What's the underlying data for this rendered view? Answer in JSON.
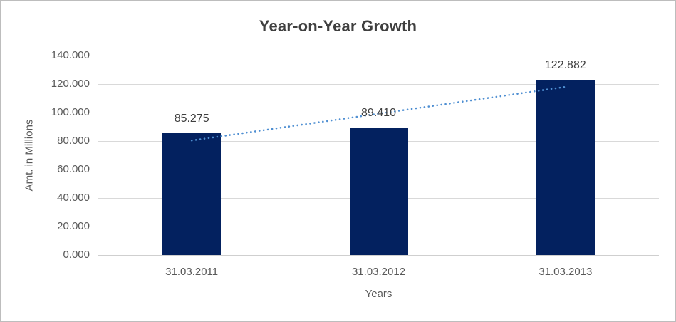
{
  "frame": {
    "background": "#ffffff",
    "border_color": "#bdbdbd"
  },
  "chart_data": {
    "type": "bar",
    "title": "Year-on-Year Growth",
    "categories": [
      "31.03.2011",
      "31.03.2012",
      "31.03.2013"
    ],
    "values": [
      85.275,
      89.41,
      122.882
    ],
    "data_labels": [
      "85.275",
      "89.410",
      "122.882"
    ],
    "xlabel": "Years",
    "ylabel": "Amt. in Millions",
    "ylim": [
      0,
      140
    ],
    "ytick_step": 20,
    "ytick_labels": [
      "0.000",
      "20.000",
      "40.000",
      "60.000",
      "80.000",
      "100.000",
      "120.000",
      "140.000"
    ],
    "grid": true,
    "legend_position": "none",
    "trendline": {
      "type": "linear",
      "style": "dotted"
    },
    "colors": {
      "bar": "#03215f",
      "trendline": "#4f8fd2",
      "gridline": "#d9d9d9",
      "axis_line": "#cfcfcf",
      "title_text": "#3f3f3f",
      "tick_text": "#595959",
      "axis_title_text": "#595959",
      "data_label_text": "#3f3f3f"
    }
  }
}
